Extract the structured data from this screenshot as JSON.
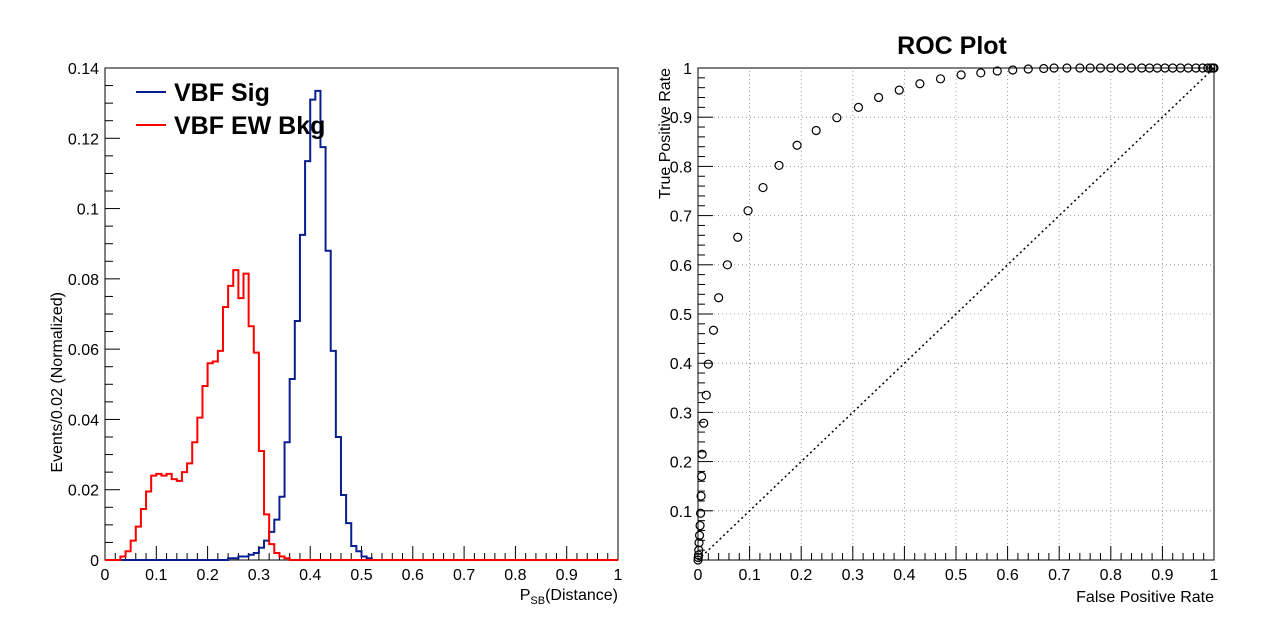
{
  "chart_data": [
    {
      "type": "step-histogram",
      "title": "",
      "xlabel_main": "P",
      "xlabel_sub": "SB",
      "xlabel_rest": "(Distance)",
      "ylabel": "Events/0.02 (Normalized)",
      "xlim": [
        0,
        1
      ],
      "ylim": [
        0,
        0.14
      ],
      "x_ticks": [
        "0",
        "0.1",
        "0.2",
        "0.3",
        "0.4",
        "0.5",
        "0.6",
        "0.7",
        "0.8",
        "0.9",
        "1"
      ],
      "y_ticks": [
        "0",
        "0.02",
        "0.04",
        "0.06",
        "0.08",
        "0.1",
        "0.12",
        "0.14"
      ],
      "bin_width": 0.02,
      "grid": false,
      "legend_position": "top-left",
      "series": [
        {
          "name": "VBF Sig",
          "color": "#0a1f8f",
          "values": [
            0,
            0,
            0,
            0,
            0,
            0,
            0,
            0,
            0,
            0,
            0,
            0,
            0,
            0,
            0,
            0,
            0,
            0,
            0,
            0,
            0,
            0,
            0,
            0,
            0.0005,
            0.0005,
            0.001,
            0.001,
            0.0015,
            0.002,
            0.0035,
            0.0055,
            0.008,
            0.0115,
            0.018,
            0.0335,
            0.0515,
            0.068,
            0.0925,
            0.1135,
            0.131,
            0.1335,
            0.1175,
            0.088,
            0.0595,
            0.035,
            0.0185,
            0.0105,
            0.004,
            0.0025,
            0.001,
            0.0005,
            0,
            0,
            0,
            0,
            0,
            0,
            0,
            0,
            0,
            0,
            0,
            0,
            0,
            0,
            0,
            0,
            0,
            0,
            0,
            0,
            0,
            0,
            0,
            0,
            0,
            0,
            0,
            0,
            0,
            0,
            0,
            0,
            0,
            0,
            0,
            0,
            0,
            0,
            0,
            0,
            0,
            0,
            0,
            0,
            0,
            0,
            0,
            0
          ]
        },
        {
          "name": "VBF EW Bkg",
          "color": "#ff0000",
          "values": [
            0,
            0,
            0,
            0.001,
            0.0025,
            0.0055,
            0.0095,
            0.0145,
            0.0195,
            0.024,
            0.0245,
            0.024,
            0.0245,
            0.023,
            0.0225,
            0.025,
            0.0275,
            0.0335,
            0.0405,
            0.0495,
            0.056,
            0.0565,
            0.0595,
            0.072,
            0.078,
            0.0825,
            0.0745,
            0.0815,
            0.0665,
            0.059,
            0.031,
            0.013,
            0.0045,
            0.002,
            0.001,
            0.0005,
            0,
            0,
            0,
            0,
            0,
            0,
            0,
            0,
            0,
            0,
            0,
            0,
            0,
            0,
            0,
            0,
            0,
            0,
            0,
            0,
            0,
            0,
            0,
            0,
            0,
            0,
            0,
            0,
            0,
            0,
            0,
            0,
            0,
            0,
            0,
            0,
            0,
            0,
            0,
            0,
            0,
            0,
            0,
            0,
            0,
            0,
            0,
            0,
            0,
            0,
            0,
            0,
            0,
            0,
            0,
            0,
            0,
            0,
            0,
            0,
            0,
            0,
            0,
            0
          ]
        }
      ]
    },
    {
      "type": "scatter",
      "title": "ROC Plot",
      "xlabel": "False Positive Rate",
      "ylabel": "True Positive Rate",
      "xlim": [
        0,
        1
      ],
      "ylim": [
        0,
        1
      ],
      "x_ticks": [
        "0",
        "0.1",
        "0.2",
        "0.3",
        "0.4",
        "0.5",
        "0.6",
        "0.7",
        "0.8",
        "0.9",
        "1"
      ],
      "y_ticks": [
        "0.1",
        "0.2",
        "0.3",
        "0.4",
        "0.5",
        "0.6",
        "0.7",
        "0.8",
        "0.9",
        "1"
      ],
      "grid": true,
      "marker": "open-circle",
      "diagonal": true,
      "points": [
        [
          0,
          0
        ],
        [
          0.0005,
          0.005
        ],
        [
          0.001,
          0.01
        ],
        [
          0.0015,
          0.02
        ],
        [
          0.002,
          0.035
        ],
        [
          0.003,
          0.05
        ],
        [
          0.004,
          0.07
        ],
        [
          0.005,
          0.095
        ],
        [
          0.006,
          0.13
        ],
        [
          0.007,
          0.17
        ],
        [
          0.008,
          0.215
        ],
        [
          0.011,
          0.278
        ],
        [
          0.016,
          0.335
        ],
        [
          0.02,
          0.398
        ],
        [
          0.03,
          0.467
        ],
        [
          0.04,
          0.533
        ],
        [
          0.057,
          0.6
        ],
        [
          0.077,
          0.656
        ],
        [
          0.097,
          0.71
        ],
        [
          0.126,
          0.757
        ],
        [
          0.157,
          0.802
        ],
        [
          0.192,
          0.843
        ],
        [
          0.229,
          0.873
        ],
        [
          0.269,
          0.899
        ],
        [
          0.311,
          0.92
        ],
        [
          0.35,
          0.94
        ],
        [
          0.39,
          0.955
        ],
        [
          0.43,
          0.968
        ],
        [
          0.47,
          0.978
        ],
        [
          0.51,
          0.986
        ],
        [
          0.548,
          0.99
        ],
        [
          0.58,
          0.994
        ],
        [
          0.61,
          0.996
        ],
        [
          0.64,
          0.998
        ],
        [
          0.67,
          0.999
        ],
        [
          0.69,
          1
        ],
        [
          0.715,
          1
        ],
        [
          0.74,
          1
        ],
        [
          0.76,
          1
        ],
        [
          0.78,
          1
        ],
        [
          0.8,
          1
        ],
        [
          0.82,
          1
        ],
        [
          0.84,
          1
        ],
        [
          0.86,
          1
        ],
        [
          0.875,
          1
        ],
        [
          0.89,
          1
        ],
        [
          0.905,
          1
        ],
        [
          0.92,
          1
        ],
        [
          0.935,
          1
        ],
        [
          0.95,
          1
        ],
        [
          0.965,
          1
        ],
        [
          0.978,
          1
        ],
        [
          0.988,
          1
        ],
        [
          0.994,
          1
        ],
        [
          0.998,
          1
        ],
        [
          1,
          1
        ]
      ]
    }
  ]
}
